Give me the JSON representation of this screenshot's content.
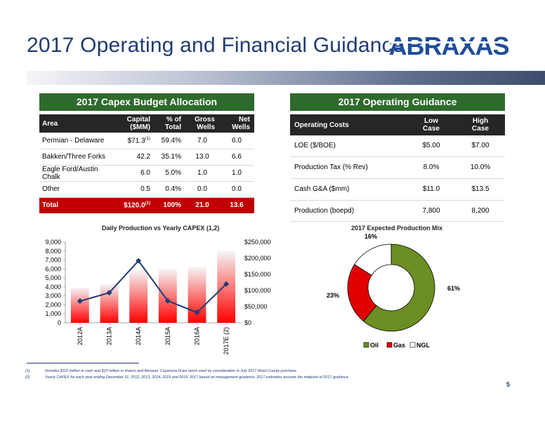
{
  "title": "2017 Operating and Financial Guidance",
  "logo": {
    "text": "ABRAXAS"
  },
  "capex": {
    "header": "2017 Capex Budget Allocation",
    "columns": {
      "area": "Area",
      "capital_1": "Capital",
      "capital_2": "($MM)",
      "pct_1": "% of",
      "pct_2": "Total",
      "gross_1": "Gross",
      "gross_2": "Wells",
      "net_1": "Net",
      "net_2": "Wells"
    },
    "rows": [
      {
        "area": "Permian - Delaware",
        "capital": "$71.3",
        "capital_note": "(1)",
        "pct": "59.4%",
        "gross": "7.0",
        "net": "6.0"
      },
      {
        "area": "Bakken/Three Forks",
        "capital": "42.2",
        "capital_note": "",
        "pct": "35.1%",
        "gross": "13.0",
        "net": "6.6"
      },
      {
        "area": "Eagle Ford/Austin Chalk",
        "capital": "6.0",
        "capital_note": "",
        "pct": "5.0%",
        "gross": "1.0",
        "net": "1.0"
      },
      {
        "area": "Other",
        "capital": "0.5",
        "capital_note": "",
        "pct": "0.4%",
        "gross": "0.0",
        "net": "0.0"
      }
    ],
    "total": {
      "area": "Total",
      "capital": "$120.0",
      "capital_note": "(1)",
      "pct": "100%",
      "gross": "21.0",
      "net": "13.6"
    }
  },
  "operating": {
    "header": "2017 Operating Guidance",
    "columns": {
      "costs": "Operating Costs",
      "low_1": "Low",
      "low_2": "Case",
      "high_1": "High",
      "high_2": "Case"
    },
    "rows": [
      {
        "label": "LOE ($/BOE)",
        "low": "$5.00",
        "high": "$7.00"
      },
      {
        "label": "Production Tax (% Rev)",
        "low": "8.0%",
        "high": "10.0%"
      },
      {
        "label": "Cash G&A ($mm)",
        "low": "$11.0",
        "high": "$13.5"
      },
      {
        "label": "Production (boepd)",
        "low": "7,800",
        "high": "8,200"
      }
    ]
  },
  "chart_data": [
    {
      "type": "bar",
      "title": "Daily Production vs Yearly CAPEX (1,2)",
      "categories": [
        "2012A",
        "2013A",
        "2014A",
        "2015A",
        "2016A",
        "2017E (2)"
      ],
      "series": [
        {
          "type": "bar",
          "axis": "left",
          "values": [
            3900,
            4300,
            5800,
            6000,
            6200,
            8000
          ]
        },
        {
          "type": "line",
          "axis": "right",
          "values": [
            67000,
            93000,
            192000,
            68000,
            32000,
            120000
          ]
        }
      ],
      "left_axis": {
        "min": 0,
        "max": 9000,
        "step": 1000,
        "ticks": [
          "0",
          "1,000",
          "2,000",
          "3,000",
          "4,000",
          "5,000",
          "6,000",
          "7,000",
          "8,000",
          "9,000"
        ]
      },
      "right_axis": {
        "min": 0,
        "max": 250000,
        "step": 50000,
        "ticks": [
          "$0",
          "$50,000",
          "$100,000",
          "$150,000",
          "$200,000",
          "$250,000"
        ]
      },
      "colors": {
        "bar_top": "#f5f5f5",
        "bar_bottom": "#ff0000",
        "line": "#1f3b73"
      }
    },
    {
      "type": "pie",
      "donut": true,
      "title": "2017 Expected Production Mix",
      "slices": [
        {
          "name": "Oil",
          "value": 61,
          "label": "61%",
          "color": "#6b8e23"
        },
        {
          "name": "Gas",
          "value": 23,
          "label": "23%",
          "color": "#e00000"
        },
        {
          "name": "NGL",
          "value": 16,
          "label": "16%",
          "color": "#ffffff"
        }
      ],
      "legend": "bottom"
    }
  ],
  "footnotes": [
    {
      "num": "(1)",
      "text": "Includes $110 million in cash and $10 million in shares and Abraxas' Coyanosa Draw ranch used as consideration in July 2017 Ward County purchase."
    },
    {
      "num": "(2)",
      "text": "Yearly CAPEX for each year ending December 31, 2012, 2013, 2014, 2015 and 2016.  2017 based on management guidance; 2017 estimates assume the midpoint of 2017 guidance."
    }
  ],
  "page_number": "5"
}
